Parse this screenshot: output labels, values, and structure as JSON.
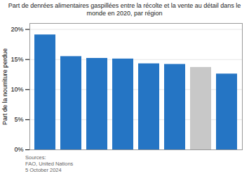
{
  "chart_data": {
    "type": "bar",
    "title": "Part de denrées alimentaires gaspillées entre la récolte et la vente au détail dans le\nmonde en 2020, par région",
    "ylabel": "Part de la nourriture perdue",
    "categories": [
      null,
      null,
      null,
      null,
      null,
      null,
      null,
      null
    ],
    "values": [
      0.191,
      0.155,
      0.152,
      0.151,
      0.143,
      0.142,
      0.137,
      0.126
    ],
    "colors": [
      "#2575c4",
      "#2575c4",
      "#2575c4",
      "#2575c4",
      "#2575c4",
      "#2575c4",
      "#c8c8c8",
      "#2575c4"
    ],
    "ylim": [
      0,
      0.21
    ],
    "yticks": [
      {
        "value": 0.0,
        "label": "0%"
      },
      {
        "value": 0.05,
        "label": "5%"
      },
      {
        "value": 0.1,
        "label": "10%"
      },
      {
        "value": 0.15,
        "label": "15%"
      },
      {
        "value": 0.2,
        "label": "20%"
      }
    ],
    "grid": true,
    "tick_labels": "y",
    "annotations": [
      "Sources:\nFAO, United Nations\n5 October 2024"
    ]
  }
}
